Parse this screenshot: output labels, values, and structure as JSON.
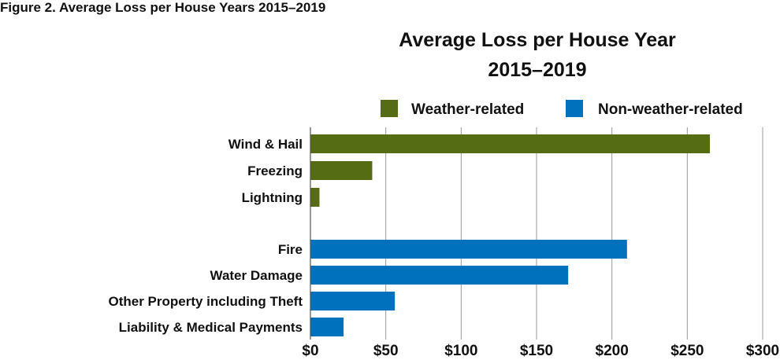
{
  "figure_caption": "Figure 2. Average Loss per House Years 2015–2019",
  "chart_data": {
    "type": "bar",
    "orientation": "horizontal",
    "title_lines": [
      "Average Loss per House Year",
      "2015–2019"
    ],
    "xlim": [
      0,
      300
    ],
    "x_ticks": [
      0,
      50,
      100,
      150,
      200,
      250,
      300
    ],
    "x_tick_labels": [
      "$0",
      "$50",
      "$100",
      "$150",
      "$200",
      "$250",
      "$300"
    ],
    "grid": "vertical",
    "legend_placement": "top",
    "series": [
      {
        "name": "Weather-related",
        "color": "#556b14",
        "categories": [
          "Wind & Hail",
          "Freezing",
          "Lightning"
        ],
        "values": [
          265,
          41,
          6
        ]
      },
      {
        "name": "Non-weather-related",
        "color": "#0071bc",
        "categories": [
          "Fire",
          "Water Damage",
          "Other Property including Theft",
          "Liability & Medical Payments"
        ],
        "values": [
          210,
          171,
          56,
          22
        ]
      }
    ]
  }
}
